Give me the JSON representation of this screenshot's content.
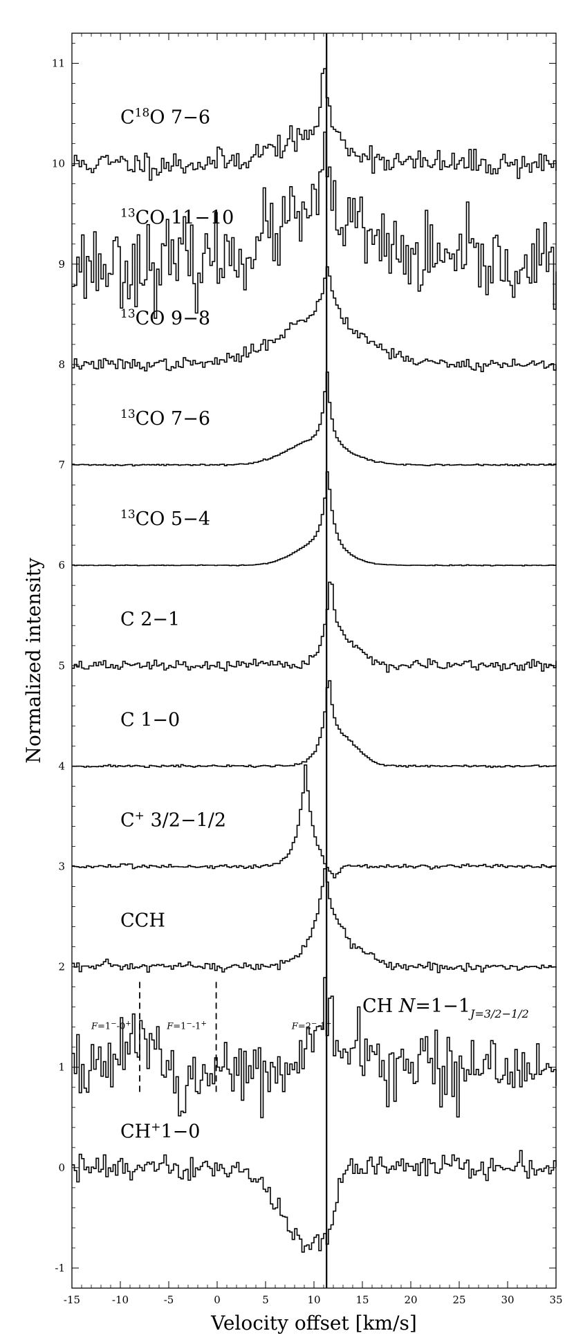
{
  "chart_data": {
    "type": "line",
    "title": "",
    "xlabel": "Velocity offset [km/s]",
    "ylabel": "Normalized intensity",
    "xlim": [
      -15,
      35
    ],
    "ylim": [
      -1.2,
      11.3
    ],
    "x_ticks": [
      -15,
      -10,
      -5,
      0,
      5,
      10,
      15,
      20,
      25,
      30,
      35
    ],
    "x_tick_labels": [
      "-15",
      "-10",
      "-5",
      "0",
      "5",
      "10",
      "15",
      "20",
      "25",
      "30",
      "35"
    ],
    "y_ticks": [
      -1,
      0,
      1,
      2,
      3,
      4,
      5,
      6,
      7,
      8,
      9,
      10,
      11
    ],
    "y_tick_labels": [
      "-1",
      "0",
      "1",
      "2",
      "3",
      "4",
      "5",
      "6",
      "7",
      "8",
      "9",
      "10",
      "11"
    ],
    "grid": false,
    "legend": "none",
    "reference_line_velocity": 11.3,
    "series": [
      {
        "name": "C18O 7-6",
        "label_main": "C",
        "label_sup": "18",
        "label_rest": "O 7−6",
        "label_pos": [
          -10,
          10.4
        ],
        "offset": 10,
        "kind": "emission",
        "peak_v": 11.0,
        "peak_amp": 1.0,
        "wing_amp": 0.25,
        "wing_v": 9.5,
        "wing_width": 4.0,
        "core_width": 0.55,
        "noise": 0.065,
        "seed": 11
      },
      {
        "name": "13CO 11-10",
        "label_pre_sup": "13",
        "label_main": "CO 11−10",
        "label_pos": [
          -10,
          9.4
        ],
        "offset": 9,
        "kind": "emission",
        "peak_v": 11.0,
        "peak_amp": 0.9,
        "wing_amp": 0.45,
        "wing_v": 10.0,
        "wing_width": 5.0,
        "core_width": 0.9,
        "noise": 0.2,
        "seed": 23
      },
      {
        "name": "13CO 9-8",
        "label_pre_sup": "13",
        "label_main": "CO 9−8",
        "label_pos": [
          -10,
          8.4
        ],
        "offset": 8,
        "kind": "emission",
        "peak_v": 11.3,
        "peak_amp": 1.0,
        "wing_amp": 0.45,
        "wing_v": 10.5,
        "wing_width": 4.5,
        "core_width": 0.8,
        "noise": 0.03,
        "seed": 37
      },
      {
        "name": "13CO 7-6",
        "label_pre_sup": "13",
        "label_main": "CO 7−6",
        "label_pos": [
          -10,
          7.4
        ],
        "offset": 7,
        "kind": "emission",
        "peak_v": 11.2,
        "peak_amp": 1.0,
        "wing_amp": 0.25,
        "wing_v": 10.2,
        "wing_width": 3.0,
        "core_width": 0.45,
        "noise": 0.004,
        "seed": 41
      },
      {
        "name": "13CO 5-4",
        "label_pre_sup": "13",
        "label_main": "CO 5−4",
        "label_pos": [
          -10,
          6.4
        ],
        "offset": 6,
        "kind": "emission",
        "peak_v": 11.3,
        "peak_amp": 1.0,
        "wing_amp": 0.22,
        "wing_v": 10.5,
        "wing_width": 2.5,
        "core_width": 0.55,
        "noise": 0.002,
        "seed": 53
      },
      {
        "name": "C 2-1",
        "label_main": "C 2−1",
        "label_pos": [
          -10,
          5.4
        ],
        "offset": 5,
        "kind": "emission",
        "peak_v": 11.6,
        "peak_amp": 1.0,
        "wing_amp": 0.25,
        "wing_v": 12.8,
        "wing_width": 1.8,
        "core_width": 0.5,
        "noise": 0.025,
        "seed": 67
      },
      {
        "name": "C 1-0",
        "label_main": "C 1−0",
        "label_pos": [
          -10,
          4.4
        ],
        "offset": 4,
        "kind": "emission",
        "peak_v": 11.4,
        "peak_amp": 1.0,
        "wing_amp": 0.3,
        "wing_v": 12.5,
        "wing_width": 1.8,
        "core_width": 0.45,
        "noise": 0.006,
        "seed": 71
      },
      {
        "name": "C+ 3/2-1/2",
        "label_main": "C",
        "label_sup": "+",
        "label_rest": " 3/2−1/2",
        "label_pos": [
          -10,
          3.4
        ],
        "offset": 3,
        "kind": "emission",
        "peak_v": 9.0,
        "peak_amp": 1.0,
        "wing_amp": 0.0,
        "wing_v": 9.0,
        "wing_width": 1.0,
        "core_width": 0.85,
        "noise": 0.01,
        "seed": 83
      },
      {
        "name": "CCH",
        "label_main": "CCH",
        "label_pos": [
          -10,
          2.4
        ],
        "offset": 2,
        "kind": "emission",
        "peak_v": 11.0,
        "peak_amp": 1.0,
        "wing_amp": 0.3,
        "wing_v": 12.0,
        "wing_width": 2.5,
        "core_width": 0.8,
        "noise": 0.025,
        "seed": 97
      },
      {
        "name": "CH N=1-1 J=3/2-1/2",
        "label_main": "CH ",
        "label_it": "N",
        "label_rest": "=1−1",
        "label_sub": "J=3/2−1/2",
        "label_pos": [
          15,
          1.55
        ],
        "offset": 1,
        "kind": "hfs",
        "peak_v": 11.3,
        "peak_amp": 0.75,
        "wing_amp": 0.2,
        "wing_v": 13.5,
        "wing_width": 2.0,
        "core_width": 0.6,
        "noise": 0.17,
        "seed": 109
      },
      {
        "name": "CH+ 1-0",
        "label_main": "CH",
        "label_sup": "+",
        "label_rest": "1−0",
        "label_pos": [
          -10,
          0.3
        ],
        "offset": 0,
        "kind": "absorption",
        "peak_v": 9.2,
        "peak_amp": -0.8,
        "wing_amp": 0.0,
        "wing_v": 9.2,
        "wing_width": 1.0,
        "core_width": 1.6,
        "noise": 0.06,
        "seed": 127
      }
    ],
    "annotations": [
      {
        "text_it": "F",
        "text": "=1",
        "sup1": "−",
        "mid": "-0",
        "sup2": "+",
        "x": -13,
        "y": 1.38
      },
      {
        "text_it": "F",
        "text": "=1",
        "sup1": "−",
        "mid": "-1",
        "sup2": "+",
        "x": -5.2,
        "y": 1.38
      },
      {
        "text_it": "F",
        "text": "=2",
        "sup1": "−",
        "mid": "-1",
        "sup2": "+",
        "x": 7.7,
        "y": 1.38
      }
    ],
    "hfs_markers": [
      -8.0,
      -0.1
    ]
  }
}
